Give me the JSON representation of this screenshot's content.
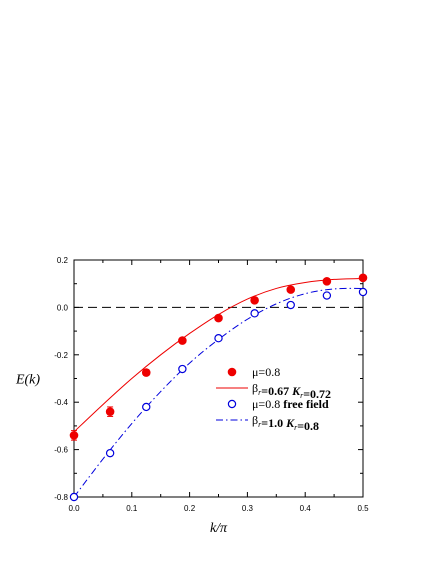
{
  "chart_data": {
    "type": "scatter",
    "title": "",
    "xlabel": "k/π",
    "ylabel": "E(k)",
    "xlim": [
      0.0,
      0.5
    ],
    "ylim": [
      -0.8,
      0.2
    ],
    "xticks": [
      "0.0",
      "0.1",
      "0.2",
      "0.3",
      "0.4",
      "0.5"
    ],
    "yticks": [
      "-0.8",
      "-0.6",
      "-0.4",
      "-0.2",
      "0.0",
      "0.2"
    ],
    "grid": false,
    "legend_position": "lower-right",
    "reference_line": {
      "y": 0.0,
      "style": "dashed",
      "color": "#000000"
    },
    "series": [
      {
        "name": "μ=0.8",
        "kind": "points",
        "marker": "filled-circle",
        "color": "#ee0000",
        "x": [
          0.0,
          0.0625,
          0.125,
          0.1875,
          0.25,
          0.3125,
          0.375,
          0.4375,
          0.5
        ],
        "y": [
          -0.54,
          -0.44,
          -0.275,
          -0.14,
          -0.045,
          0.03,
          0.075,
          0.11,
          0.125
        ],
        "yerr": [
          0.02,
          0.02,
          0.012,
          0.01,
          0.008,
          0.006,
          0.005,
          0.005,
          0.005
        ]
      },
      {
        "name_parts": [
          {
            "t": "β",
            "style": "n"
          },
          {
            "t": "r",
            "style": "sub"
          },
          {
            "t": "=0.67  ",
            "style": "b"
          },
          {
            "t": "K",
            "style": "bi"
          },
          {
            "t": "r",
            "style": "sub"
          },
          {
            "t": "=0.72",
            "style": "b"
          }
        ],
        "kind": "curve",
        "line": "solid",
        "color": "#ee0000",
        "x": [
          0.0,
          0.05,
          0.1,
          0.15,
          0.2,
          0.25,
          0.3,
          0.35,
          0.4,
          0.45,
          0.5
        ],
        "y": [
          -0.525,
          -0.41,
          -0.3,
          -0.2,
          -0.11,
          -0.03,
          0.035,
          0.08,
          0.105,
          0.118,
          0.122
        ]
      },
      {
        "name_parts": [
          {
            "t": "μ=0.8 ",
            "style": "n"
          },
          {
            "t": "free field",
            "style": "b"
          }
        ],
        "kind": "points",
        "marker": "open-circle",
        "color": "#0000dd",
        "x": [
          0.0,
          0.0625,
          0.125,
          0.1875,
          0.25,
          0.3125,
          0.375,
          0.4375,
          0.5
        ],
        "y": [
          -0.8,
          -0.615,
          -0.42,
          -0.26,
          -0.13,
          -0.025,
          0.01,
          0.05,
          0.065
        ]
      },
      {
        "name_parts": [
          {
            "t": "β",
            "style": "n"
          },
          {
            "t": "r",
            "style": "sub"
          },
          {
            "t": "=1.0  ",
            "style": "b"
          },
          {
            "t": "K",
            "style": "bi"
          },
          {
            "t": "r",
            "style": "sub"
          },
          {
            "t": "=0.8",
            "style": "b"
          }
        ],
        "kind": "curve",
        "line": "dash-dot",
        "color": "#0000dd",
        "x": [
          0.0,
          0.05,
          0.1,
          0.15,
          0.2,
          0.25,
          0.3,
          0.35,
          0.4,
          0.45,
          0.5
        ],
        "y": [
          -0.8,
          -0.64,
          -0.49,
          -0.355,
          -0.235,
          -0.135,
          -0.05,
          0.015,
          0.058,
          0.078,
          0.08
        ]
      }
    ]
  }
}
